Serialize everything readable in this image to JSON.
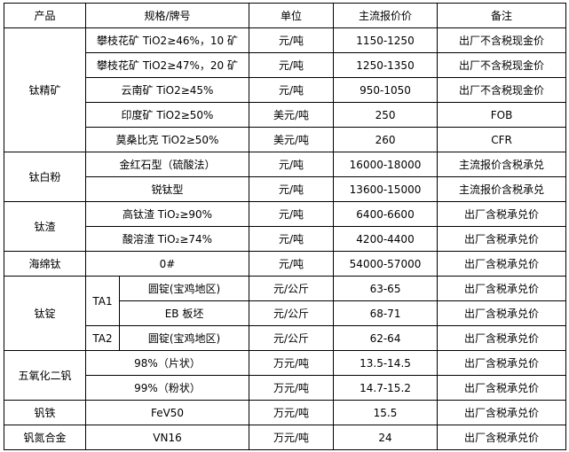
{
  "headers": [
    "产品",
    "规格/牌号",
    "单位",
    "主流报价价",
    "备注"
  ],
  "rows": [
    {
      "product": "钛精矿",
      "spec": "攀枝花矿 TiO2≥46%，10 矿",
      "unit": "元/吨",
      "price": "1150-1250",
      "note": "出厂不含税现金价"
    },
    {
      "spec": "攀枝花矿 TiO2≥47%，20 矿",
      "unit": "元/吨",
      "price": "1250-1350",
      "note": "出厂不含税现金价"
    },
    {
      "spec": "云南矿 TiO2≥45%",
      "unit": "元/吨",
      "price": "950-1050",
      "note": "出厂不含税现金价"
    },
    {
      "spec": "印度矿 TiO2≥50%",
      "unit": "美元/吨",
      "price": "250",
      "note": "FOB"
    },
    {
      "spec": "莫桑比克 TiO2≥50%",
      "unit": "美元/吨",
      "price": "260",
      "note": "CFR"
    },
    {
      "product": "钛白粉",
      "spec": "金红石型（硫酸法）",
      "unit": "元/吨",
      "price": "16000-18000",
      "note": "主流报价含税承兑"
    },
    {
      "spec": "锐钛型",
      "unit": "元/吨",
      "price": "13600-15000",
      "note": "主流报价含税承兑"
    },
    {
      "product": "钛渣",
      "spec": "高钛渣 TiO₂≥90%",
      "unit": "元/吨",
      "price": "6400-6600",
      "note": "出厂含税承兑价"
    },
    {
      "spec": "酸溶渣 TiO₂≥74%",
      "unit": "元/吨",
      "price": "4200-4400",
      "note": "出厂含税承兑价"
    },
    {
      "product": "海绵钛",
      "spec": "0#",
      "unit": "元/吨",
      "price": "54000-57000",
      "note": "出厂含税承兑价"
    },
    {
      "product": "钛锭",
      "grade": "TA1",
      "spec": "圆锭(宝鸡地区)",
      "unit": "元/公斤",
      "price": "63-65",
      "note": "出厂含税承兑价"
    },
    {
      "spec": "EB 板坯",
      "unit": "元/公斤",
      "price": "68-71",
      "note": "出厂含税承兑价"
    },
    {
      "grade": "TA2",
      "spec": "圆锭(宝鸡地区)",
      "unit": "元/公斤",
      "price": "62-64",
      "note": "出厂含税承兑价"
    },
    {
      "product": "五氧化二钒",
      "spec": "98%（片状）",
      "unit": "万元/吨",
      "price": "13.5-14.5",
      "note": "出厂含税承兑价"
    },
    {
      "spec": "99%（粉状）",
      "unit": "万元/吨",
      "price": "14.7-15.2",
      "note": "出厂含税承兑价"
    },
    {
      "product": "钒铁",
      "spec": "FeV50",
      "unit": "万元/吨",
      "price": "15.5",
      "note": "出厂含税承兑价"
    },
    {
      "product": "钒氮合金",
      "spec": "VN16",
      "unit": "万元/吨",
      "price": "24",
      "note": "出厂含税承兑价"
    }
  ]
}
